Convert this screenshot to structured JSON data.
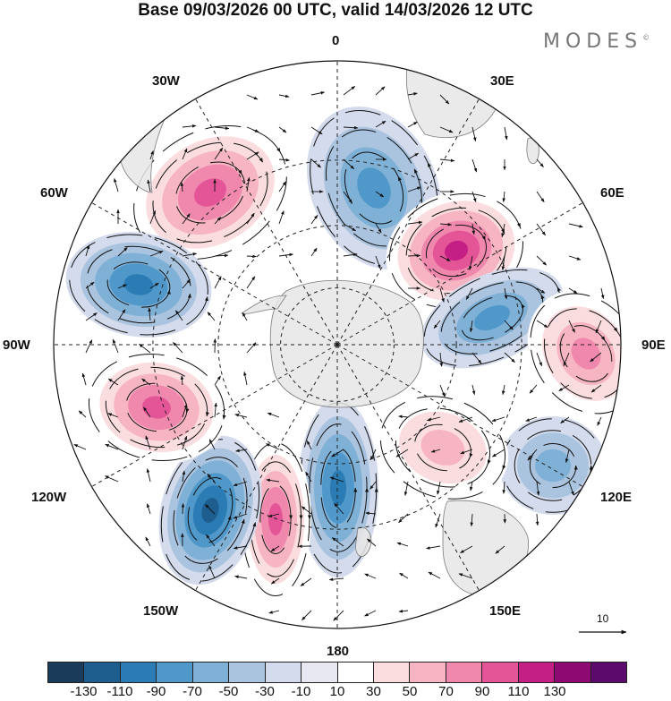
{
  "header": {
    "title": "Base 09/03/2026 00 UTC, valid 14/03/2026 12 UTC",
    "brand": "MODES",
    "brand_mark": "©"
  },
  "map": {
    "projection": "south-polar-stereographic",
    "longitude_labels": {
      "lon_0": "0",
      "lon_30e": "30E",
      "lon_60e": "60E",
      "lon_90e": "90E",
      "lon_120e": "120E",
      "lon_150e": "150E",
      "lon_180": "180",
      "lon_150w": "150W",
      "lon_120w": "120W",
      "lon_90w": "90W",
      "lon_60w": "60W",
      "lon_30w": "30W"
    },
    "reference_vector": {
      "label": "10"
    },
    "anomaly_centers": [
      {
        "id": "high-30w",
        "sign": "positive",
        "value": 80
      },
      {
        "id": "low-0",
        "sign": "negative",
        "value": -70
      },
      {
        "id": "high-40e",
        "sign": "positive",
        "value": 100
      },
      {
        "id": "low-75e",
        "sign": "negative",
        "value": -70
      },
      {
        "id": "high-95e",
        "sign": "positive",
        "value": 60
      },
      {
        "id": "low-120e",
        "sign": "negative",
        "value": -40
      },
      {
        "id": "high-150e",
        "sign": "positive",
        "value": 40
      },
      {
        "id": "low-175e",
        "sign": "negative",
        "value": -80
      },
      {
        "id": "high-160w",
        "sign": "positive",
        "value": 80
      },
      {
        "id": "low-140w",
        "sign": "negative",
        "value": -110
      },
      {
        "id": "high-110w",
        "sign": "positive",
        "value": 80
      },
      {
        "id": "low-70w",
        "sign": "negative",
        "value": -90
      }
    ],
    "colors": {
      "land": "#e6e6e6",
      "coast": "#7a7a7a",
      "grid": "#222222",
      "vector": "#111111"
    }
  },
  "legend": {
    "ticks": [
      "-130",
      "-110",
      "-90",
      "-70",
      "-50",
      "-30",
      "-10",
      "10",
      "30",
      "50",
      "70",
      "90",
      "110",
      "130"
    ],
    "bin_colors": [
      "#1a3b5a",
      "#1d5e8f",
      "#2b7cb4",
      "#4f98c9",
      "#7fb0d6",
      "#aac4df",
      "#d4dbec",
      "#e8e8f3",
      "#ffffff",
      "#fbdde0",
      "#f7b5c4",
      "#f087ad",
      "#e45598",
      "#c31f84",
      "#8e0a72",
      "#5a0b6b"
    ]
  }
}
